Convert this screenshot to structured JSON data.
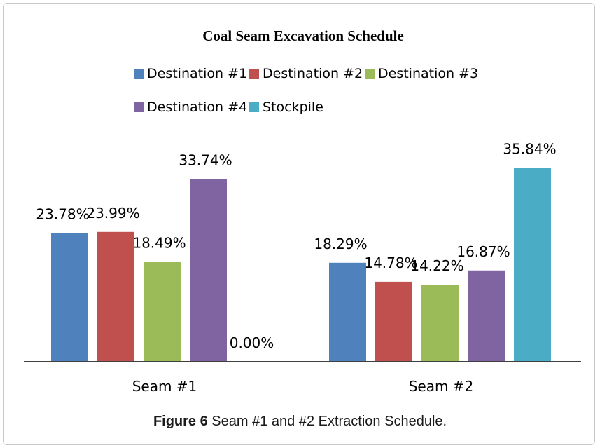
{
  "chart_data": {
    "type": "bar",
    "title": "Coal Seam Excavation Schedule",
    "categories": [
      "Seam #1",
      "Seam #2"
    ],
    "series": [
      {
        "name": "Destination #1",
        "color": "#4f81bd",
        "values": [
          23.78,
          18.29
        ],
        "labels": [
          "23.78%",
          "18.29%"
        ]
      },
      {
        "name": "Destination #2",
        "color": "#c0504d",
        "values": [
          23.99,
          14.78
        ],
        "labels": [
          "23.99%",
          "14.78%"
        ]
      },
      {
        "name": "Destination #3",
        "color": "#9bbb59",
        "values": [
          18.49,
          14.22
        ],
        "labels": [
          "18.49%",
          "14.22%"
        ]
      },
      {
        "name": "Destination #4",
        "color": "#8064a2",
        "values": [
          33.74,
          16.87
        ],
        "labels": [
          "33.74%",
          "16.87%"
        ]
      },
      {
        "name": "Stockpile",
        "color": "#4bacc6",
        "values": [
          0.0,
          35.84
        ],
        "labels": [
          "0.00%",
          "35.84%"
        ]
      }
    ],
    "xlabel": "",
    "ylabel": "",
    "ylim": [
      0,
      40
    ],
    "grid": false,
    "legend": "top"
  },
  "caption": {
    "prefix": "Figure 6",
    "text": " Seam #1 and #2 Extraction Schedule."
  }
}
